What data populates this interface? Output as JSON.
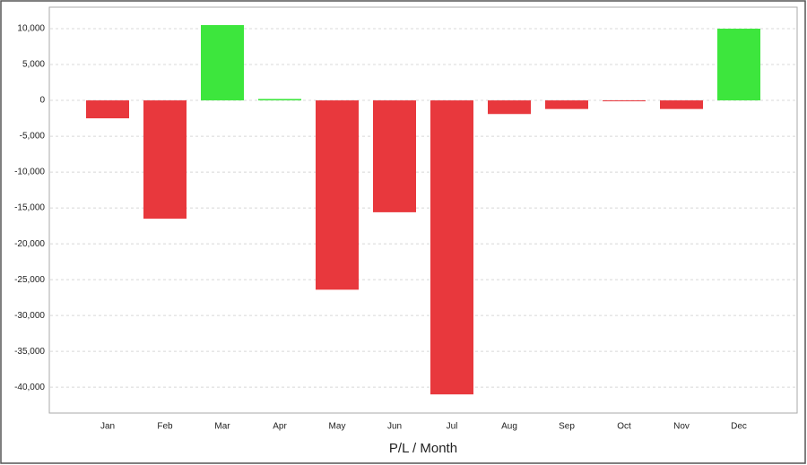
{
  "chart_data": {
    "type": "bar",
    "x_label": "P/L / Month",
    "categories": [
      "Jan",
      "Feb",
      "Mar",
      "Apr",
      "May",
      "Jun",
      "Jul",
      "Aug",
      "Sep",
      "Oct",
      "Nov",
      "Dec"
    ],
    "values": [
      -2500,
      -16500,
      10500,
      200,
      -26400,
      -15600,
      -41000,
      -1900,
      -1200,
      -100,
      -1200,
      10000
    ],
    "positive_color": "#3de63d",
    "negative_color": "#e8383d",
    "ylim": [
      -43600,
      13000
    ],
    "yticks": [
      {
        "value": -40000,
        "label": "-40,000"
      },
      {
        "value": -35000,
        "label": "-35,000"
      },
      {
        "value": -30000,
        "label": "-30,000"
      },
      {
        "value": -25000,
        "label": "-25,000"
      },
      {
        "value": -20000,
        "label": "-20,000"
      },
      {
        "value": -15000,
        "label": "-15,000"
      },
      {
        "value": -10000,
        "label": "-10,000"
      },
      {
        "value": -5000,
        "label": "-5,000"
      },
      0,
      {
        "value": 5000,
        "label": "5,000"
      },
      {
        "value": 10000,
        "label": "10,000"
      }
    ],
    "grid": true
  }
}
